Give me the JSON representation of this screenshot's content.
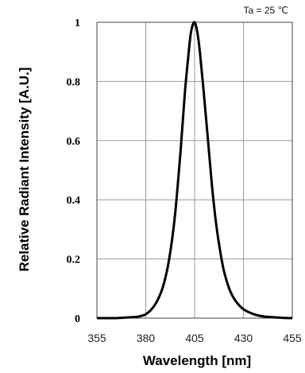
{
  "chart_data": {
    "type": "line",
    "xlabel": "Wavelength [nm]",
    "ylabel": "Relative Radiant Intensity [A.U.]",
    "annotation": "Ta = 25 ℃",
    "xlim": [
      355,
      455
    ],
    "ylim": [
      0,
      1
    ],
    "x_ticks": [
      "355",
      "380",
      "405",
      "430",
      "455"
    ],
    "y_ticks": [
      "0",
      "0.2",
      "0.4",
      "0.6",
      "0.8",
      "1"
    ],
    "grid": true,
    "series": [
      {
        "color": "#000000",
        "x": [
          355,
          365,
          370,
          375,
          378,
          380,
          383,
          386,
          389,
          392,
          395,
          398,
          400,
          402,
          403,
          404,
          405,
          406,
          407,
          408,
          410,
          412,
          414,
          416,
          418,
          420,
          423,
          426,
          430,
          435,
          440,
          445,
          450,
          455
        ],
        "y": [
          0.0,
          0.0,
          0.002,
          0.004,
          0.008,
          0.013,
          0.03,
          0.06,
          0.11,
          0.2,
          0.35,
          0.58,
          0.76,
          0.9,
          0.96,
          0.99,
          1.0,
          0.98,
          0.94,
          0.88,
          0.74,
          0.59,
          0.44,
          0.32,
          0.23,
          0.16,
          0.095,
          0.058,
          0.03,
          0.014,
          0.006,
          0.003,
          0.001,
          0.0
        ]
      }
    ]
  }
}
